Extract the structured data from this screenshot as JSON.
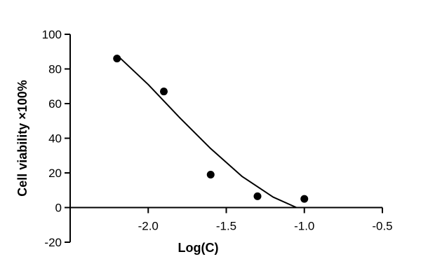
{
  "chart_data": {
    "type": "scatter",
    "title": "",
    "xlabel": "Log(C)",
    "ylabel": "Cell viability  ×100%",
    "xlim": [
      -2.5,
      -0.5
    ],
    "ylim": [
      -20,
      100
    ],
    "x_ticks": [
      -2.0,
      -1.5,
      -1.0,
      -0.5
    ],
    "x_tick_labels": [
      "-2.0",
      "-1.5",
      "-1.0",
      "-0.5"
    ],
    "y_ticks": [
      -20,
      0,
      20,
      40,
      60,
      80,
      100
    ],
    "y_tick_labels": [
      "-20",
      "0",
      "20",
      "40",
      "60",
      "80",
      "100"
    ],
    "grid": false,
    "series": [
      {
        "points": [
          {
            "x": -2.2,
            "y": 86
          },
          {
            "x": -1.9,
            "y": 67
          },
          {
            "x": -1.6,
            "y": 19
          },
          {
            "x": -1.3,
            "y": 6.5
          },
          {
            "x": -1.0,
            "y": 5
          }
        ]
      }
    ],
    "fit_curve": [
      {
        "x": -2.2,
        "y": 88
      },
      {
        "x": -2.0,
        "y": 71
      },
      {
        "x": -1.8,
        "y": 52
      },
      {
        "x": -1.6,
        "y": 34
      },
      {
        "x": -1.4,
        "y": 18
      },
      {
        "x": -1.2,
        "y": 6
      },
      {
        "x": -1.05,
        "y": 0
      }
    ],
    "colors": {
      "marker": "#000000",
      "line": "#000000",
      "axis": "#000000"
    }
  }
}
